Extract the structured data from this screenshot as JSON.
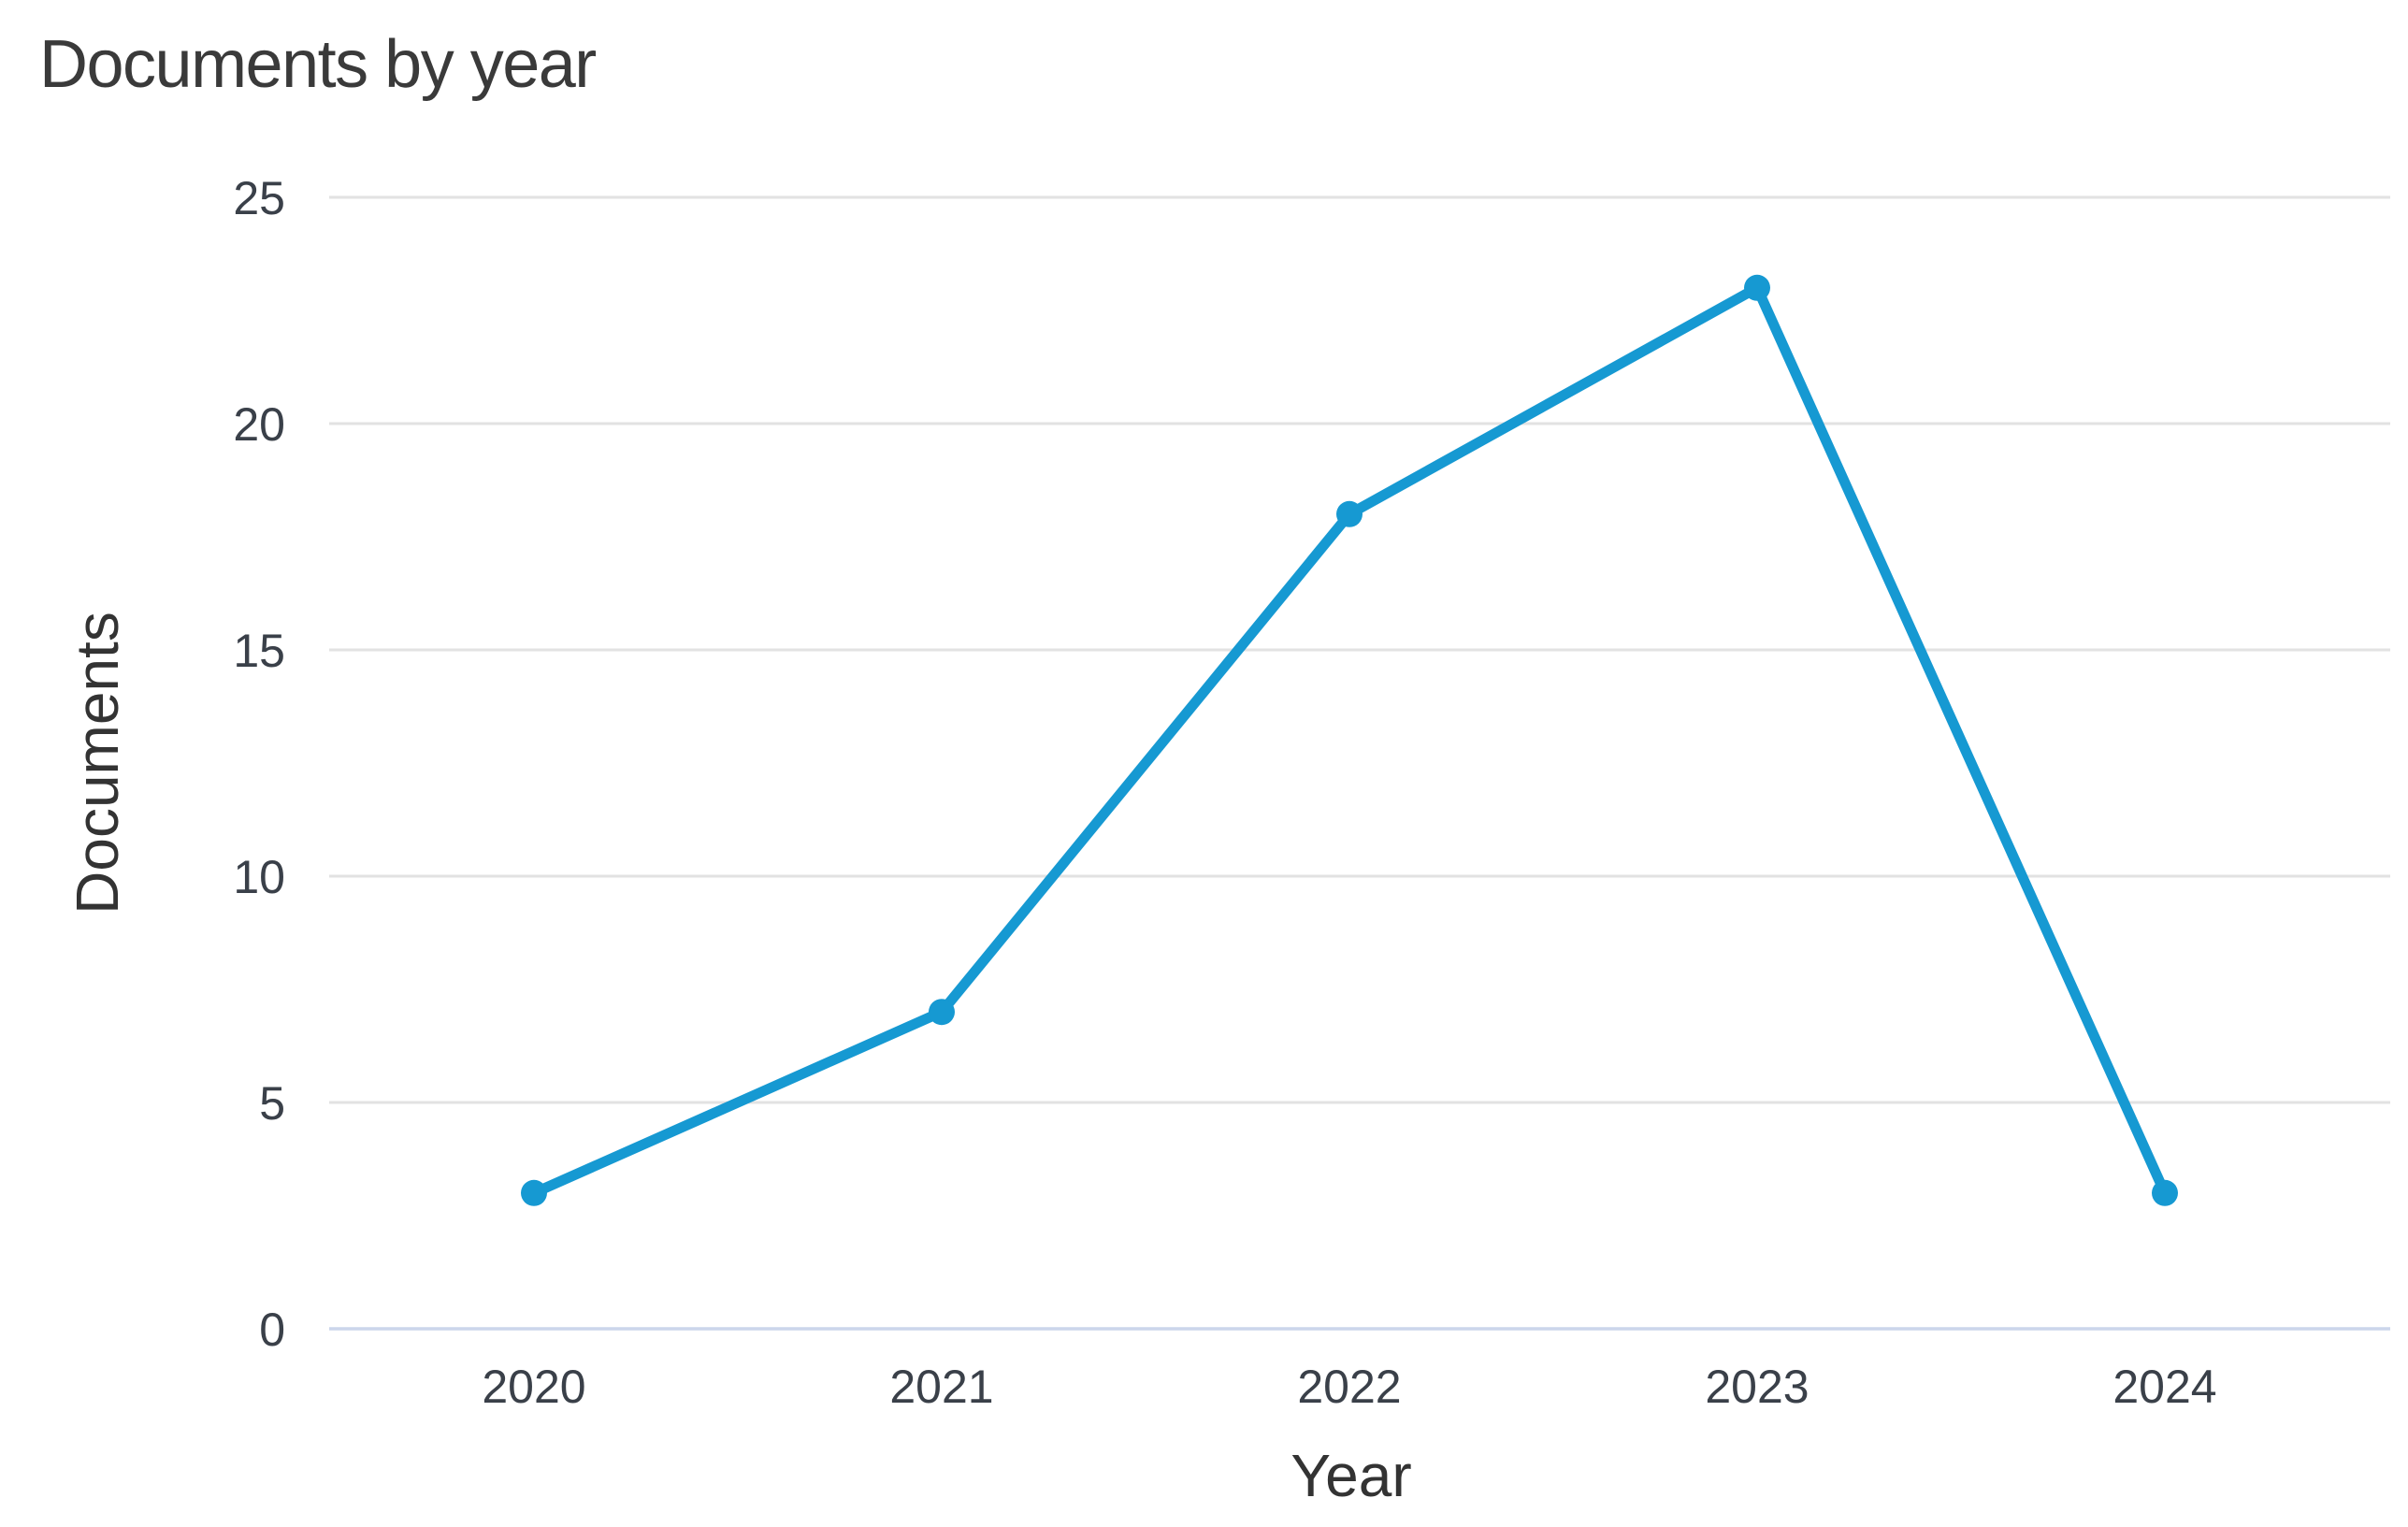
{
  "chart_data": {
    "type": "line",
    "title": "Documents by year",
    "categories": [
      "2020",
      "2021",
      "2022",
      "2023",
      "2024"
    ],
    "series": [
      {
        "name": "Documents",
        "values": [
          3,
          7,
          18,
          23,
          3
        ]
      }
    ],
    "xlabel": "Year",
    "ylabel": "Documents",
    "ylim": [
      0,
      25
    ],
    "yticks": [
      0,
      5,
      10,
      15,
      20,
      25
    ],
    "grid": "horizontal-only",
    "legend": "none",
    "marker": "circle",
    "colors": {
      "line": "#1699d2",
      "marker": "#1699d2",
      "gridline": "#e2e2e2",
      "axis_line": "#ccd6eb",
      "title_text": "#3a3a3a",
      "tick_text": "#3a4049",
      "axis_title_text": "#333333"
    }
  }
}
